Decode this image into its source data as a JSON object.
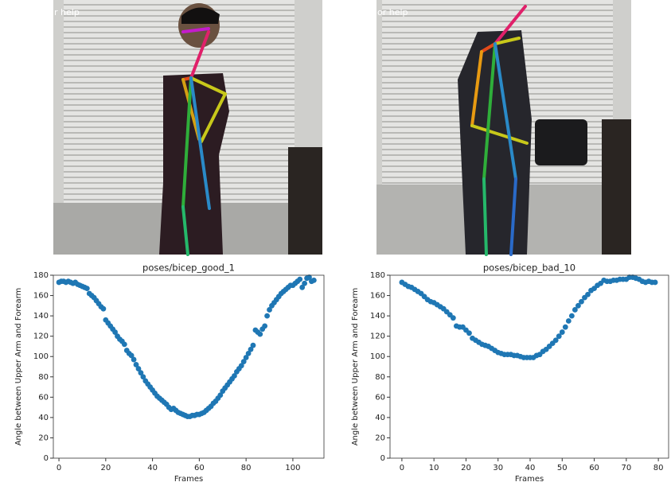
{
  "photos": [
    {
      "overlay_text": "r help"
    },
    {
      "overlay_text": "or help"
    }
  ],
  "chart_data": [
    {
      "type": "scatter",
      "title": "poses/bicep_good_1",
      "x_label": "Frames",
      "y_label": "Angle between Upper Arm and Forearm",
      "color": "#1f77b4",
      "x": [
        0,
        1,
        2,
        3,
        4,
        5,
        6,
        7,
        8,
        9,
        10,
        11,
        12,
        13,
        14,
        15,
        16,
        17,
        18,
        19,
        20,
        21,
        22,
        23,
        24,
        25,
        26,
        27,
        28,
        29,
        30,
        31,
        32,
        33,
        34,
        35,
        36,
        37,
        38,
        39,
        40,
        41,
        42,
        43,
        44,
        45,
        46,
        47,
        48,
        49,
        50,
        51,
        52,
        53,
        54,
        55,
        56,
        57,
        58,
        59,
        60,
        61,
        62,
        63,
        64,
        65,
        66,
        67,
        68,
        69,
        70,
        71,
        72,
        73,
        74,
        75,
        76,
        77,
        78,
        79,
        80,
        81,
        82,
        83,
        84,
        85,
        86,
        87,
        88,
        89,
        90,
        91,
        92,
        93,
        94,
        95,
        96,
        97,
        98,
        99,
        100,
        101,
        102,
        103,
        104,
        105,
        106,
        107,
        108,
        109
      ],
      "values": [
        173,
        174,
        174,
        173,
        174,
        173,
        172,
        173,
        171,
        170,
        169,
        168,
        167,
        162,
        160,
        158,
        155,
        152,
        149,
        147,
        136,
        133,
        130,
        127,
        124,
        120,
        117,
        115,
        112,
        106,
        103,
        101,
        97,
        92,
        88,
        84,
        80,
        76,
        73,
        70,
        67,
        64,
        61,
        59,
        57,
        55,
        53,
        50,
        48,
        49,
        47,
        45,
        44,
        43,
        42,
        41,
        41,
        42,
        42,
        43,
        43,
        44,
        45,
        47,
        49,
        51,
        54,
        56,
        59,
        62,
        66,
        69,
        72,
        75,
        78,
        81,
        85,
        88,
        91,
        95,
        99,
        103,
        107,
        111,
        126,
        124,
        122,
        127,
        130,
        140,
        146,
        150,
        153,
        156,
        159,
        162,
        164,
        166,
        168,
        170,
        170,
        172,
        174,
        176,
        168,
        172,
        177,
        178,
        174,
        175
      ],
      "xlim": [
        -2.4,
        113.3
      ],
      "xticks": [
        0,
        20,
        40,
        60,
        80,
        100
      ],
      "ylim": [
        0,
        180
      ],
      "yticks": [
        0,
        20,
        40,
        60,
        80,
        100,
        120,
        140,
        160,
        180
      ]
    },
    {
      "type": "scatter",
      "title": "poses/bicep_bad_10",
      "x_label": "Frames",
      "y_label": "Angle between Upper Arm and Forearm",
      "color": "#1f77b4",
      "x": [
        0,
        1,
        2,
        3,
        4,
        5,
        6,
        7,
        8,
        9,
        10,
        11,
        12,
        13,
        14,
        15,
        16,
        17,
        18,
        19,
        20,
        21,
        22,
        23,
        24,
        25,
        26,
        27,
        28,
        29,
        30,
        31,
        32,
        33,
        34,
        35,
        36,
        37,
        38,
        39,
        40,
        41,
        42,
        43,
        44,
        45,
        46,
        47,
        48,
        49,
        50,
        51,
        52,
        53,
        54,
        55,
        56,
        57,
        58,
        59,
        60,
        61,
        62,
        63,
        64,
        65,
        66,
        67,
        68,
        69,
        70,
        71,
        72,
        73,
        74,
        75,
        76,
        77,
        78,
        79
      ],
      "values": [
        173,
        171,
        169,
        168,
        166,
        164,
        162,
        159,
        156,
        154,
        153,
        151,
        149,
        147,
        144,
        141,
        138,
        130,
        129,
        129,
        126,
        123,
        118,
        116,
        114,
        112,
        111,
        110,
        108,
        106,
        104,
        103,
        102,
        102,
        102,
        101,
        101,
        100,
        99,
        99,
        99,
        99,
        101,
        102,
        105,
        107,
        110,
        113,
        116,
        120,
        124,
        129,
        135,
        140,
        146,
        150,
        154,
        158,
        161,
        165,
        167,
        170,
        172,
        175,
        174,
        174,
        175,
        175,
        176,
        176,
        176,
        178,
        178,
        177,
        176,
        174,
        173,
        174,
        173,
        173
      ],
      "xlim": [
        -3.7,
        83.2
      ],
      "xticks": [
        0,
        10,
        20,
        30,
        40,
        50,
        60,
        70,
        80
      ],
      "ylim": [
        0,
        180
      ],
      "yticks": [
        0,
        20,
        40,
        60,
        80,
        100,
        120,
        140,
        160,
        180
      ]
    }
  ]
}
